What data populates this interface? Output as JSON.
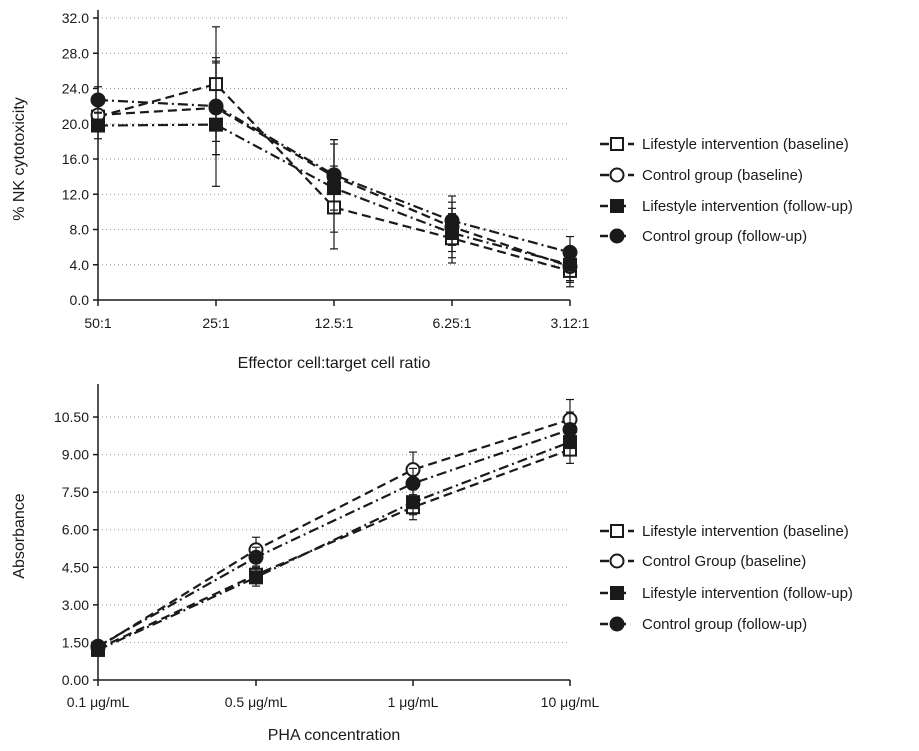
{
  "chart_data": [
    {
      "type": "line",
      "title": "",
      "xlabel": "Effector cell:target cell ratio",
      "ylabel": "% NK cytotoxicity",
      "categories": [
        "50:1",
        "25:1",
        "12.5:1",
        "6.25:1",
        "3.12:1"
      ],
      "ylim": [
        0,
        32
      ],
      "yticks": [
        "0.0",
        "4.0",
        "8.0",
        "12.0",
        "16.0",
        "20.0",
        "24.0",
        "28.0",
        "32.0"
      ],
      "grid": "horizontal dotted",
      "legend_position": "right",
      "series": [
        {
          "name": "Lifestyle intervention (baseline)",
          "marker": "square-open",
          "dash": "dashed",
          "values": [
            20.8,
            24.5,
            10.5,
            7.0,
            3.3
          ],
          "errors": [
            1.5,
            6.5,
            4.7,
            2.8,
            1.8
          ]
        },
        {
          "name": "Control group (baseline)",
          "marker": "circle-open",
          "dash": "dashed",
          "values": [
            21.0,
            21.8,
            14.0,
            8.3,
            3.8
          ],
          "errors": [
            1.5,
            5.3,
            4.2,
            2.8,
            1.8
          ]
        },
        {
          "name": "Lifestyle intervention (follow-up)",
          "marker": "square-filled",
          "dash": "dash-dot",
          "values": [
            19.8,
            19.9,
            12.7,
            7.6,
            4.0
          ],
          "errors": [
            1.5,
            7.0,
            5.0,
            2.8,
            1.8
          ]
        },
        {
          "name": "Control group (follow-up)",
          "marker": "circle-filled",
          "dash": "dash-dot",
          "values": [
            22.7,
            22.0,
            14.2,
            9.0,
            5.4
          ],
          "errors": [
            1.5,
            5.5,
            4.0,
            2.8,
            1.8
          ]
        }
      ]
    },
    {
      "type": "line",
      "title": "",
      "xlabel": "PHA concentration",
      "ylabel": "Absorbance",
      "categories": [
        "0.1 μg/mL",
        "0.5  μg/mL",
        "1 μg/mL",
        "10 μg/mL"
      ],
      "ylim": [
        0,
        11.5
      ],
      "yticks": [
        "0.00",
        "1.50",
        "3.00",
        "4.50",
        "6.00",
        "7.50",
        "9.00",
        "10.50"
      ],
      "grid": "horizontal dotted",
      "legend_position": "right",
      "series": [
        {
          "name": "Lifestyle intervention (baseline)",
          "marker": "square-open",
          "dash": "dashed",
          "values": [
            1.25,
            4.2,
            6.9,
            9.2
          ],
          "errors": [
            0.2,
            0.35,
            0.5,
            0.55
          ]
        },
        {
          "name": "Control Group (baseline)",
          "marker": "circle-open",
          "dash": "dashed",
          "values": [
            1.3,
            5.2,
            8.4,
            10.4
          ],
          "errors": [
            0.2,
            0.5,
            0.7,
            0.8
          ]
        },
        {
          "name": "Lifestyle intervention (follow-up)",
          "marker": "square-filled",
          "dash": "dash-dot",
          "values": [
            1.2,
            4.1,
            7.1,
            9.5
          ],
          "errors": [
            0.2,
            0.35,
            0.5,
            0.55
          ]
        },
        {
          "name": "Control group (follow-up)",
          "marker": "circle-filled",
          "dash": "dash-dot",
          "values": [
            1.35,
            4.9,
            7.85,
            10.0
          ],
          "errors": [
            0.2,
            0.4,
            0.6,
            0.7
          ]
        }
      ]
    }
  ]
}
